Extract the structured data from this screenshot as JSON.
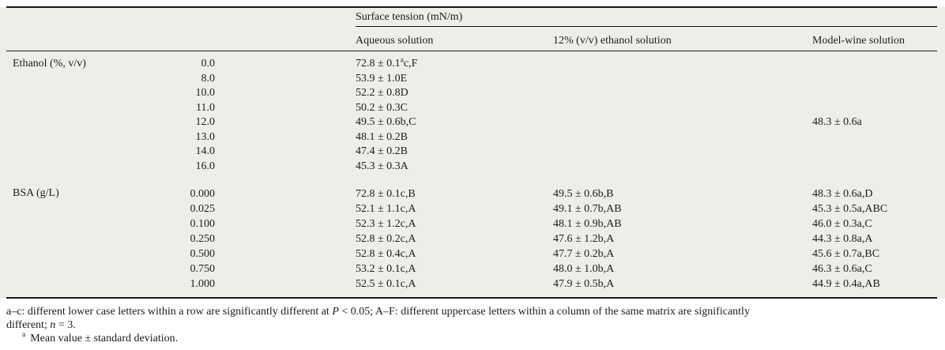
{
  "colors": {
    "table_background": "#eeedea",
    "rule": "#171717",
    "text": "#1c1c1e"
  },
  "table": {
    "group_header": "Surface tension (mN/m)",
    "col_headers": {
      "aqueous": "Aqueous solution",
      "eth12": "12% (v/v) ethanol solution",
      "wine": "Model-wine solution"
    },
    "sections": [
      {
        "label": "Ethanol (%, v/v)",
        "rows": [
          {
            "conc": "0.0",
            "aqueous": "72.8 ± 0.1",
            "aqueous_sup": "a",
            "aqueous_tail": "c,F"
          },
          {
            "conc": "8.0",
            "aqueous": "53.9 ± 1.0E"
          },
          {
            "conc": "10.0",
            "aqueous": "52.2 ± 0.8D"
          },
          {
            "conc": "11.0",
            "aqueous": "50.2 ± 0.3C"
          },
          {
            "conc": "12.0",
            "aqueous": "49.5 ± 0.6b,C",
            "wine": "48.3 ± 0.6a"
          },
          {
            "conc": "13.0",
            "aqueous": "48.1 ± 0.2B"
          },
          {
            "conc": "14.0",
            "aqueous": "47.4 ± 0.2B"
          },
          {
            "conc": "16.0",
            "aqueous": "45.3 ± 0.3A"
          }
        ]
      },
      {
        "label": "BSA (g/L)",
        "rows": [
          {
            "conc": "0.000",
            "aqueous": "72.8 ± 0.1c,B",
            "eth12": "49.5 ± 0.6b,B",
            "wine": "48.3 ± 0.6a,D"
          },
          {
            "conc": "0.025",
            "aqueous": "52.1 ± 1.1c,A",
            "eth12": "49.1 ± 0.7b,AB",
            "wine": "45.3 ± 0.5a,ABC"
          },
          {
            "conc": "0.100",
            "aqueous": "52.3 ± 1.2c,A",
            "eth12": "48.1 ± 0.9b,AB",
            "wine": "46.0 ± 0.3a,C"
          },
          {
            "conc": "0.250",
            "aqueous": "52.8 ± 0.2c,A",
            "eth12": "47.6 ± 1.2b,A",
            "wine": "44.3 ± 0.8a,A"
          },
          {
            "conc": "0.500",
            "aqueous": "52.8 ± 0.4c,A",
            "eth12": "47.7 ± 0.2b,A",
            "wine": "45.6 ± 0.7a,BC"
          },
          {
            "conc": "0.750",
            "aqueous": "53.2 ± 0.1c,A",
            "eth12": "48.0 ± 1.0b,A",
            "wine": "46.3 ± 0.6a,C"
          },
          {
            "conc": "1.000",
            "aqueous": "52.5 ± 0.1c,A",
            "eth12": "47.9 ± 0.5b,A",
            "wine": "44.9 ± 0.4a,AB"
          }
        ]
      }
    ]
  },
  "footnotes": {
    "note1_pre": "a–c: different lower case letters within a row are significantly different at ",
    "note1_italic1": "P",
    "note1_mid": " < 0.05; A–F: different uppercase letters within a column of the same matrix are significantly",
    "note1_line2": "different; ",
    "note1_italic2": "n",
    "note1_post": " = 3.",
    "note2_sup": "a",
    "note2_text": "Mean value ± standard deviation."
  }
}
